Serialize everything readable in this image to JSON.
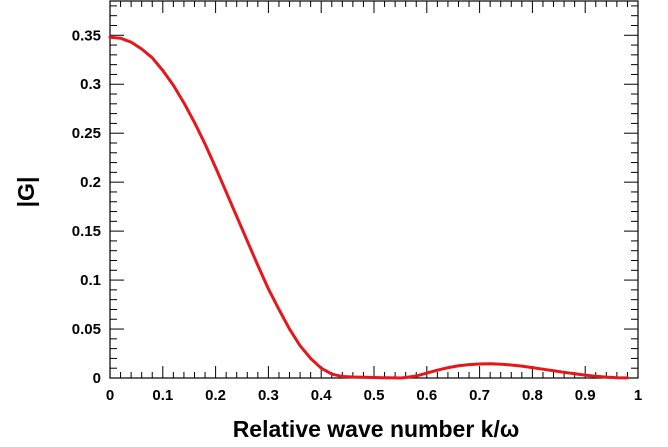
{
  "chart_data": {
    "type": "line",
    "title": "",
    "xlabel": "Relative wave number k/ω",
    "ylabel": "|G|",
    "xlim": [
      0,
      1
    ],
    "ylim": [
      0,
      0.385
    ],
    "x_ticks": [
      "0",
      "0.1",
      "0.2",
      "0.3",
      "0.4",
      "0.5",
      "0.6",
      "0.7",
      "0.8",
      "0.9",
      "1"
    ],
    "y_ticks": [
      "0",
      "0.05",
      "0.1",
      "0.15",
      "0.2",
      "0.25",
      "0.3",
      "0.35"
    ],
    "grid": false,
    "legend": "none",
    "series": [
      {
        "color": "#e8161b",
        "x": [
          0,
          0.02,
          0.04,
          0.06,
          0.08,
          0.1,
          0.12,
          0.14,
          0.16,
          0.18,
          0.2,
          0.22,
          0.24,
          0.26,
          0.28,
          0.3,
          0.32,
          0.34,
          0.36,
          0.38,
          0.4,
          0.42,
          0.44,
          0.46,
          0.48,
          0.5,
          0.52,
          0.54,
          0.55,
          0.56,
          0.58,
          0.6,
          0.62,
          0.64,
          0.66,
          0.68,
          0.7,
          0.72,
          0.74,
          0.76,
          0.78,
          0.8,
          0.82,
          0.84,
          0.86,
          0.88,
          0.9,
          0.92,
          0.94,
          0.96,
          0.98
        ],
        "y": [
          0.348,
          0.347,
          0.343,
          0.336,
          0.327,
          0.314,
          0.299,
          0.281,
          0.261,
          0.239,
          0.215,
          0.19,
          0.165,
          0.14,
          0.115,
          0.091,
          0.07,
          0.05,
          0.033,
          0.02,
          0.01,
          0.004,
          0.0015,
          0.001,
          0.0008,
          0.0005,
          0.0002,
          0.0001,
          0.0,
          0.0005,
          0.002,
          0.005,
          0.008,
          0.0105,
          0.0125,
          0.0137,
          0.0143,
          0.0145,
          0.0141,
          0.0133,
          0.0121,
          0.0106,
          0.009,
          0.0074,
          0.0058,
          0.0043,
          0.0029,
          0.0018,
          0.0009,
          0.0003,
          0.0001
        ]
      }
    ]
  }
}
